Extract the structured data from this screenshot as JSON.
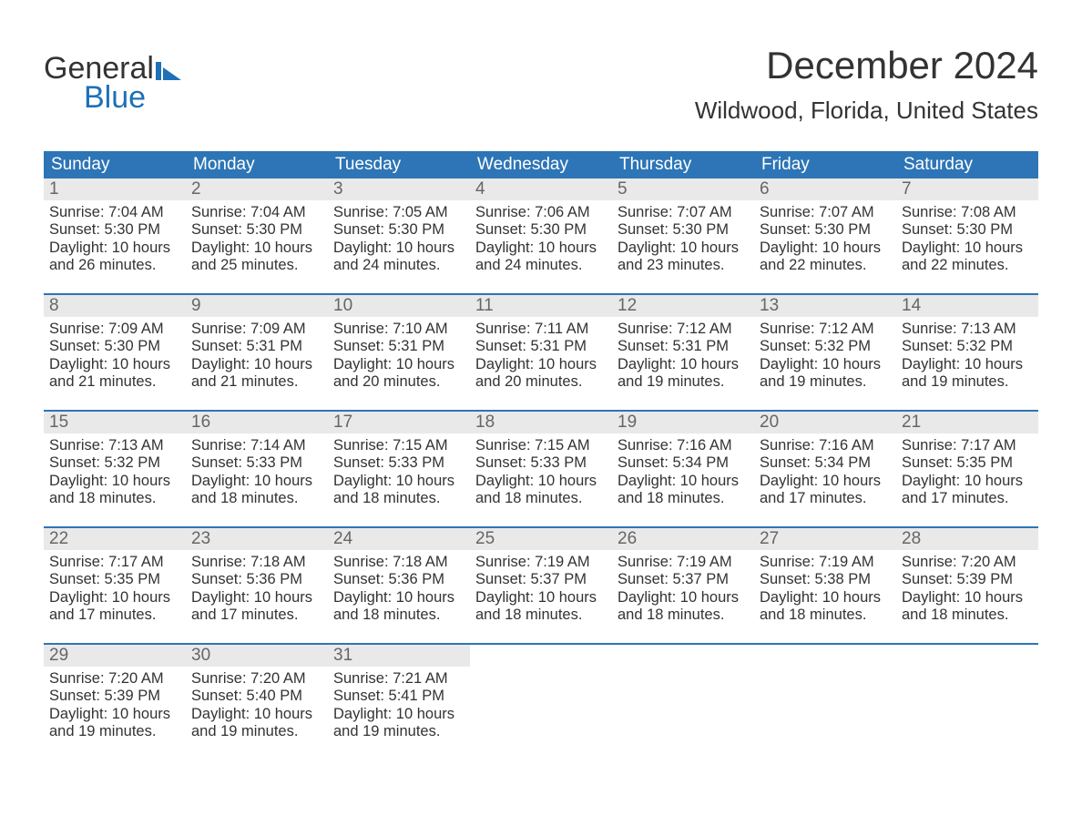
{
  "logo": {
    "line1": "General",
    "line2": "Blue",
    "flag_color": "#1e70b7"
  },
  "title": "December 2024",
  "subtitle": "Wildwood, Florida, United States",
  "colors": {
    "header_bg": "#2d75b6",
    "header_text": "#ffffff",
    "week_border": "#2d75b6",
    "daynum_bg": "#e9e9e9",
    "daynum_text": "#666666",
    "body_text": "#333333",
    "page_bg": "#ffffff"
  },
  "typography": {
    "title_fontsize": 42,
    "subtitle_fontsize": 26,
    "dow_fontsize": 19,
    "daynum_fontsize": 19,
    "body_fontsize": 16.5,
    "logo_fontsize": 34
  },
  "days_of_week": [
    "Sunday",
    "Monday",
    "Tuesday",
    "Wednesday",
    "Thursday",
    "Friday",
    "Saturday"
  ],
  "weeks": [
    [
      {
        "n": "1",
        "sr": "Sunrise: 7:04 AM",
        "ss": "Sunset: 5:30 PM",
        "d1": "Daylight: 10 hours",
        "d2": "and 26 minutes."
      },
      {
        "n": "2",
        "sr": "Sunrise: 7:04 AM",
        "ss": "Sunset: 5:30 PM",
        "d1": "Daylight: 10 hours",
        "d2": "and 25 minutes."
      },
      {
        "n": "3",
        "sr": "Sunrise: 7:05 AM",
        "ss": "Sunset: 5:30 PM",
        "d1": "Daylight: 10 hours",
        "d2": "and 24 minutes."
      },
      {
        "n": "4",
        "sr": "Sunrise: 7:06 AM",
        "ss": "Sunset: 5:30 PM",
        "d1": "Daylight: 10 hours",
        "d2": "and 24 minutes."
      },
      {
        "n": "5",
        "sr": "Sunrise: 7:07 AM",
        "ss": "Sunset: 5:30 PM",
        "d1": "Daylight: 10 hours",
        "d2": "and 23 minutes."
      },
      {
        "n": "6",
        "sr": "Sunrise: 7:07 AM",
        "ss": "Sunset: 5:30 PM",
        "d1": "Daylight: 10 hours",
        "d2": "and 22 minutes."
      },
      {
        "n": "7",
        "sr": "Sunrise: 7:08 AM",
        "ss": "Sunset: 5:30 PM",
        "d1": "Daylight: 10 hours",
        "d2": "and 22 minutes."
      }
    ],
    [
      {
        "n": "8",
        "sr": "Sunrise: 7:09 AM",
        "ss": "Sunset: 5:30 PM",
        "d1": "Daylight: 10 hours",
        "d2": "and 21 minutes."
      },
      {
        "n": "9",
        "sr": "Sunrise: 7:09 AM",
        "ss": "Sunset: 5:31 PM",
        "d1": "Daylight: 10 hours",
        "d2": "and 21 minutes."
      },
      {
        "n": "10",
        "sr": "Sunrise: 7:10 AM",
        "ss": "Sunset: 5:31 PM",
        "d1": "Daylight: 10 hours",
        "d2": "and 20 minutes."
      },
      {
        "n": "11",
        "sr": "Sunrise: 7:11 AM",
        "ss": "Sunset: 5:31 PM",
        "d1": "Daylight: 10 hours",
        "d2": "and 20 minutes."
      },
      {
        "n": "12",
        "sr": "Sunrise: 7:12 AM",
        "ss": "Sunset: 5:31 PM",
        "d1": "Daylight: 10 hours",
        "d2": "and 19 minutes."
      },
      {
        "n": "13",
        "sr": "Sunrise: 7:12 AM",
        "ss": "Sunset: 5:32 PM",
        "d1": "Daylight: 10 hours",
        "d2": "and 19 minutes."
      },
      {
        "n": "14",
        "sr": "Sunrise: 7:13 AM",
        "ss": "Sunset: 5:32 PM",
        "d1": "Daylight: 10 hours",
        "d2": "and 19 minutes."
      }
    ],
    [
      {
        "n": "15",
        "sr": "Sunrise: 7:13 AM",
        "ss": "Sunset: 5:32 PM",
        "d1": "Daylight: 10 hours",
        "d2": "and 18 minutes."
      },
      {
        "n": "16",
        "sr": "Sunrise: 7:14 AM",
        "ss": "Sunset: 5:33 PM",
        "d1": "Daylight: 10 hours",
        "d2": "and 18 minutes."
      },
      {
        "n": "17",
        "sr": "Sunrise: 7:15 AM",
        "ss": "Sunset: 5:33 PM",
        "d1": "Daylight: 10 hours",
        "d2": "and 18 minutes."
      },
      {
        "n": "18",
        "sr": "Sunrise: 7:15 AM",
        "ss": "Sunset: 5:33 PM",
        "d1": "Daylight: 10 hours",
        "d2": "and 18 minutes."
      },
      {
        "n": "19",
        "sr": "Sunrise: 7:16 AM",
        "ss": "Sunset: 5:34 PM",
        "d1": "Daylight: 10 hours",
        "d2": "and 18 minutes."
      },
      {
        "n": "20",
        "sr": "Sunrise: 7:16 AM",
        "ss": "Sunset: 5:34 PM",
        "d1": "Daylight: 10 hours",
        "d2": "and 17 minutes."
      },
      {
        "n": "21",
        "sr": "Sunrise: 7:17 AM",
        "ss": "Sunset: 5:35 PM",
        "d1": "Daylight: 10 hours",
        "d2": "and 17 minutes."
      }
    ],
    [
      {
        "n": "22",
        "sr": "Sunrise: 7:17 AM",
        "ss": "Sunset: 5:35 PM",
        "d1": "Daylight: 10 hours",
        "d2": "and 17 minutes."
      },
      {
        "n": "23",
        "sr": "Sunrise: 7:18 AM",
        "ss": "Sunset: 5:36 PM",
        "d1": "Daylight: 10 hours",
        "d2": "and 17 minutes."
      },
      {
        "n": "24",
        "sr": "Sunrise: 7:18 AM",
        "ss": "Sunset: 5:36 PM",
        "d1": "Daylight: 10 hours",
        "d2": "and 18 minutes."
      },
      {
        "n": "25",
        "sr": "Sunrise: 7:19 AM",
        "ss": "Sunset: 5:37 PM",
        "d1": "Daylight: 10 hours",
        "d2": "and 18 minutes."
      },
      {
        "n": "26",
        "sr": "Sunrise: 7:19 AM",
        "ss": "Sunset: 5:37 PM",
        "d1": "Daylight: 10 hours",
        "d2": "and 18 minutes."
      },
      {
        "n": "27",
        "sr": "Sunrise: 7:19 AM",
        "ss": "Sunset: 5:38 PM",
        "d1": "Daylight: 10 hours",
        "d2": "and 18 minutes."
      },
      {
        "n": "28",
        "sr": "Sunrise: 7:20 AM",
        "ss": "Sunset: 5:39 PM",
        "d1": "Daylight: 10 hours",
        "d2": "and 18 minutes."
      }
    ],
    [
      {
        "n": "29",
        "sr": "Sunrise: 7:20 AM",
        "ss": "Sunset: 5:39 PM",
        "d1": "Daylight: 10 hours",
        "d2": "and 19 minutes."
      },
      {
        "n": "30",
        "sr": "Sunrise: 7:20 AM",
        "ss": "Sunset: 5:40 PM",
        "d1": "Daylight: 10 hours",
        "d2": "and 19 minutes."
      },
      {
        "n": "31",
        "sr": "Sunrise: 7:21 AM",
        "ss": "Sunset: 5:41 PM",
        "d1": "Daylight: 10 hours",
        "d2": "and 19 minutes."
      },
      {
        "empty": true
      },
      {
        "empty": true
      },
      {
        "empty": true
      },
      {
        "empty": true
      }
    ]
  ]
}
